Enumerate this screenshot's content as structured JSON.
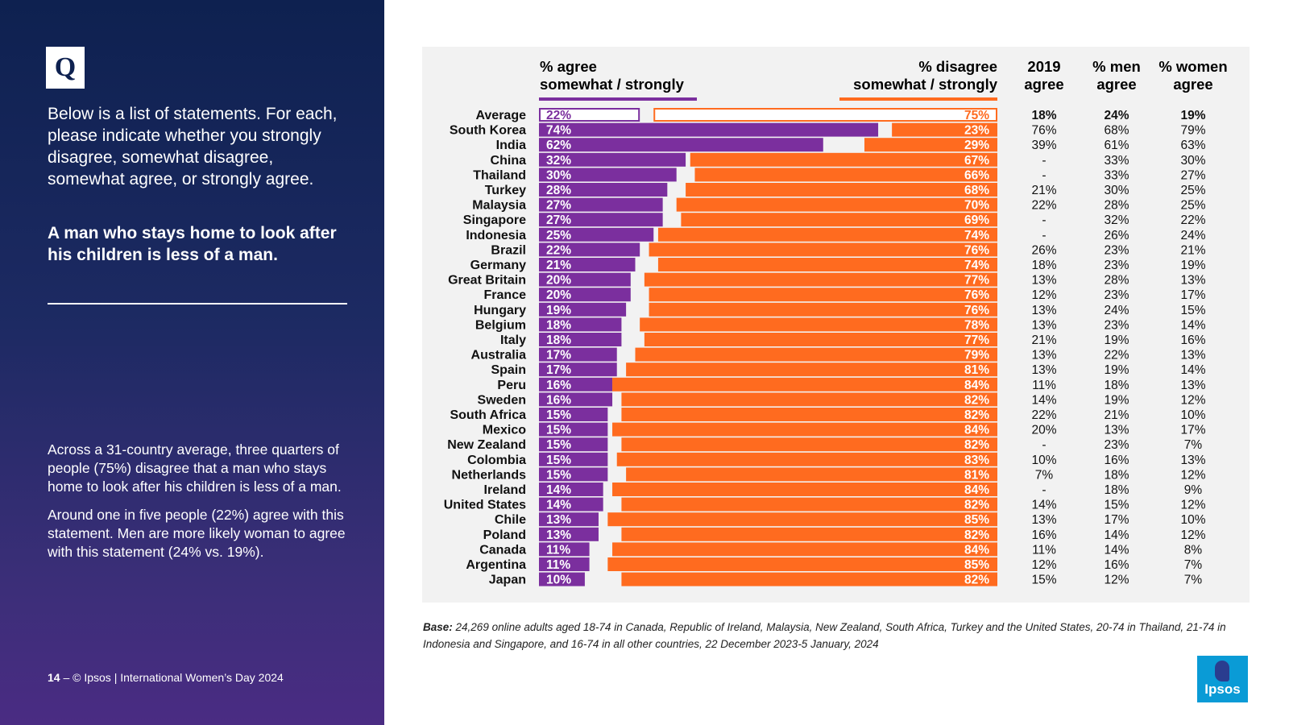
{
  "left": {
    "q_label": "Q",
    "question": "Below is a list of statements. For each, please indicate whether you strongly disagree, somewhat disagree, somewhat agree, or strongly agree.",
    "statement": "A man who stays home to look after his children is less of a man.",
    "summary_1": "Across a 31-country average, three quarters of people (75%) disagree that a man who stays home to look after his children is less of a man.",
    "summary_2": "Around one in five people (22%) agree with this statement. Men are more likely woman to agree with this statement (24% vs. 19%).",
    "footer_page": "14",
    "footer_text": " – © Ipsos | International Women’s Day 2024"
  },
  "base_note": {
    "label": "Base:",
    "text": " 24,269 online adults aged 18-74 in Canada, Republic of Ireland, Malaysia, New Zealand, South Africa, Turkey and the United States, 20-74 in Thailand, 21-74 in Indonesia and Singapore, and 16-74 in all other countries, 22 December 2023-5 January, 2024"
  },
  "logo": {
    "text": "Ipsos"
  },
  "chart_data": {
    "type": "bar",
    "headers": {
      "agree": [
        "% agree",
        "somewhat / strongly"
      ],
      "disagree": [
        "% disagree",
        "somewhat / strongly"
      ],
      "y2019": [
        "2019",
        "agree"
      ],
      "men": [
        "% men",
        "agree"
      ],
      "women": [
        "% women",
        "agree"
      ]
    },
    "colors": {
      "agree": "#7b2f9e",
      "disagree": "#ff6b1f",
      "background": "#f2f2f2"
    },
    "xlim": [
      0,
      100
    ],
    "rows": [
      {
        "country": "Average",
        "agree": 22,
        "disagree": 75,
        "y2019": "18%",
        "men": "24%",
        "women": "19%",
        "highlight": true
      },
      {
        "country": "South Korea",
        "agree": 74,
        "disagree": 23,
        "y2019": "76%",
        "men": "68%",
        "women": "79%"
      },
      {
        "country": "India",
        "agree": 62,
        "disagree": 29,
        "y2019": "39%",
        "men": "61%",
        "women": "63%"
      },
      {
        "country": "China",
        "agree": 32,
        "disagree": 67,
        "y2019": "-",
        "men": "33%",
        "women": "30%"
      },
      {
        "country": "Thailand",
        "agree": 30,
        "disagree": 66,
        "y2019": "-",
        "men": "33%",
        "women": "27%"
      },
      {
        "country": "Turkey",
        "agree": 28,
        "disagree": 68,
        "y2019": "21%",
        "men": "30%",
        "women": "25%"
      },
      {
        "country": "Malaysia",
        "agree": 27,
        "disagree": 70,
        "y2019": "22%",
        "men": "28%",
        "women": "25%"
      },
      {
        "country": "Singapore",
        "agree": 27,
        "disagree": 69,
        "y2019": "-",
        "men": "32%",
        "women": "22%"
      },
      {
        "country": "Indonesia",
        "agree": 25,
        "disagree": 74,
        "y2019": "-",
        "men": "26%",
        "women": "24%"
      },
      {
        "country": "Brazil",
        "agree": 22,
        "disagree": 76,
        "y2019": "26%",
        "men": "23%",
        "women": "21%"
      },
      {
        "country": "Germany",
        "agree": 21,
        "disagree": 74,
        "y2019": "18%",
        "men": "23%",
        "women": "19%"
      },
      {
        "country": "Great Britain",
        "agree": 20,
        "disagree": 77,
        "y2019": "13%",
        "men": "28%",
        "women": "13%"
      },
      {
        "country": "France",
        "agree": 20,
        "disagree": 76,
        "y2019": "12%",
        "men": "23%",
        "women": "17%"
      },
      {
        "country": "Hungary",
        "agree": 19,
        "disagree": 76,
        "y2019": "13%",
        "men": "24%",
        "women": "15%"
      },
      {
        "country": "Belgium",
        "agree": 18,
        "disagree": 78,
        "y2019": "13%",
        "men": "23%",
        "women": "14%"
      },
      {
        "country": "Italy",
        "agree": 18,
        "disagree": 77,
        "y2019": "21%",
        "men": "19%",
        "women": "16%"
      },
      {
        "country": "Australia",
        "agree": 17,
        "disagree": 79,
        "y2019": "13%",
        "men": "22%",
        "women": "13%"
      },
      {
        "country": "Spain",
        "agree": 17,
        "disagree": 81,
        "y2019": "13%",
        "men": "19%",
        "women": "14%"
      },
      {
        "country": "Peru",
        "agree": 16,
        "disagree": 84,
        "y2019": "11%",
        "men": "18%",
        "women": "13%"
      },
      {
        "country": "Sweden",
        "agree": 16,
        "disagree": 82,
        "y2019": "14%",
        "men": "19%",
        "women": "12%"
      },
      {
        "country": "South Africa",
        "agree": 15,
        "disagree": 82,
        "y2019": "22%",
        "men": "21%",
        "women": "10%"
      },
      {
        "country": "Mexico",
        "agree": 15,
        "disagree": 84,
        "y2019": "20%",
        "men": "13%",
        "women": "17%"
      },
      {
        "country": "New Zealand",
        "agree": 15,
        "disagree": 82,
        "y2019": "-",
        "men": "23%",
        "women": "7%"
      },
      {
        "country": "Colombia",
        "agree": 15,
        "disagree": 83,
        "y2019": "10%",
        "men": "16%",
        "women": "13%"
      },
      {
        "country": "Netherlands",
        "agree": 15,
        "disagree": 81,
        "y2019": "7%",
        "men": "18%",
        "women": "12%"
      },
      {
        "country": "Ireland",
        "agree": 14,
        "disagree": 84,
        "y2019": "-",
        "men": "18%",
        "women": "9%"
      },
      {
        "country": "United States",
        "agree": 14,
        "disagree": 82,
        "y2019": "14%",
        "men": "15%",
        "women": "12%"
      },
      {
        "country": "Chile",
        "agree": 13,
        "disagree": 85,
        "y2019": "13%",
        "men": "17%",
        "women": "10%"
      },
      {
        "country": "Poland",
        "agree": 13,
        "disagree": 82,
        "y2019": "16%",
        "men": "14%",
        "women": "12%"
      },
      {
        "country": "Canada",
        "agree": 11,
        "disagree": 84,
        "y2019": "11%",
        "men": "14%",
        "women": "8%"
      },
      {
        "country": "Argentina",
        "agree": 11,
        "disagree": 85,
        "y2019": "12%",
        "men": "16%",
        "women": "7%"
      },
      {
        "country": "Japan",
        "agree": 10,
        "disagree": 82,
        "y2019": "15%",
        "men": "12%",
        "women": "7%"
      }
    ]
  }
}
